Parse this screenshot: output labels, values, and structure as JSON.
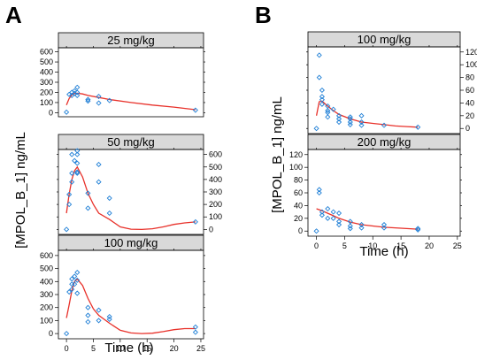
{
  "chart_data": [
    {
      "panel_label": "A",
      "type": "line",
      "xlabel": "Time (h)",
      "ylabel": "[MPOL_B_1] ng/mL",
      "xlim": [
        -1.5,
        25.5
      ],
      "ylim": [
        -40,
        640
      ],
      "xticks": [
        0,
        5,
        10,
        15,
        20,
        25
      ],
      "yticks": [
        0,
        100,
        200,
        300,
        400,
        500,
        600
      ],
      "panels": [
        {
          "strip": "25 mg/kg",
          "yaxis_side": "left",
          "observed": [
            [
              0,
              5
            ],
            [
              0.5,
              180
            ],
            [
              1,
              200
            ],
            [
              1,
              170
            ],
            [
              1.5,
              215
            ],
            [
              1.5,
              190
            ],
            [
              2,
              250
            ],
            [
              2,
              200
            ],
            [
              2,
              170
            ],
            [
              4,
              130
            ],
            [
              4,
              115
            ],
            [
              6,
              160
            ],
            [
              6,
              95
            ],
            [
              8,
              120
            ],
            [
              24,
              25
            ]
          ],
          "predicted": [
            [
              0,
              75
            ],
            [
              0.5,
              140
            ],
            [
              1,
              175
            ],
            [
              1.5,
              190
            ],
            [
              2,
              192
            ],
            [
              3,
              185
            ],
            [
              4,
              170
            ],
            [
              6,
              150
            ],
            [
              8,
              130
            ],
            [
              12,
              100
            ],
            [
              16,
              75
            ],
            [
              20,
              55
            ],
            [
              24,
              30
            ]
          ]
        },
        {
          "strip": "50 mg/kg",
          "yaxis_side": "right",
          "observed": [
            [
              0,
              0
            ],
            [
              0.5,
              200
            ],
            [
              0.5,
              280
            ],
            [
              1,
              450
            ],
            [
              1,
              380
            ],
            [
              1,
              600
            ],
            [
              1.5,
              550
            ],
            [
              2,
              600
            ],
            [
              2,
              530
            ],
            [
              2,
              630
            ],
            [
              2,
              450
            ],
            [
              2,
              460
            ],
            [
              4,
              290
            ],
            [
              4,
              170
            ],
            [
              6,
              520
            ],
            [
              6,
              380
            ],
            [
              8,
              250
            ],
            [
              8,
              130
            ],
            [
              24,
              60
            ]
          ],
          "predicted": [
            [
              0,
              130
            ],
            [
              0.5,
              280
            ],
            [
              1,
              400
            ],
            [
              1.5,
              470
            ],
            [
              2,
              500
            ],
            [
              3,
              420
            ],
            [
              4,
              290
            ],
            [
              5,
              200
            ],
            [
              6,
              130
            ],
            [
              8,
              80
            ],
            [
              10,
              20
            ],
            [
              12,
              2
            ],
            [
              14,
              0
            ],
            [
              16,
              5
            ],
            [
              18,
              20
            ],
            [
              20,
              40
            ],
            [
              22,
              52
            ],
            [
              24,
              60
            ]
          ]
        },
        {
          "strip": "100 mg/kg",
          "yaxis_side": "left",
          "observed": [
            [
              0,
              0
            ],
            [
              0.5,
              320
            ],
            [
              1,
              340
            ],
            [
              1,
              380
            ],
            [
              1,
              420
            ],
            [
              1.5,
              440
            ],
            [
              1.5,
              380
            ],
            [
              2,
              470
            ],
            [
              2,
              410
            ],
            [
              2,
              310
            ],
            [
              4,
              200
            ],
            [
              4,
              90
            ],
            [
              4,
              140
            ],
            [
              6,
              180
            ],
            [
              6,
              100
            ],
            [
              8,
              110
            ],
            [
              8,
              130
            ],
            [
              24,
              50
            ],
            [
              24,
              10
            ]
          ],
          "predicted": [
            [
              0,
              120
            ],
            [
              0.5,
              220
            ],
            [
              1,
              330
            ],
            [
              1.5,
              400
            ],
            [
              2,
              420
            ],
            [
              3,
              370
            ],
            [
              4,
              270
            ],
            [
              5,
              190
            ],
            [
              6,
              140
            ],
            [
              8,
              80
            ],
            [
              10,
              25
            ],
            [
              12,
              5
            ],
            [
              14,
              0
            ],
            [
              16,
              3
            ],
            [
              18,
              15
            ],
            [
              20,
              30
            ],
            [
              22,
              38
            ],
            [
              24,
              38
            ]
          ]
        }
      ]
    },
    {
      "panel_label": "B",
      "type": "line",
      "xlabel": "Time (h)",
      "ylabel": "[MPOL_B_1] ng/mL",
      "xlim": [
        -1.5,
        25.5
      ],
      "ylim": [
        -8,
        128
      ],
      "xticks": [
        0,
        5,
        10,
        15,
        20,
        25
      ],
      "yticks": [
        0,
        20,
        40,
        60,
        80,
        100,
        120
      ],
      "panels": [
        {
          "strip": "100 mg/kg",
          "yaxis_side": "right",
          "observed": [
            [
              0,
              0
            ],
            [
              0.5,
              115
            ],
            [
              0.5,
              80
            ],
            [
              1,
              60
            ],
            [
              1,
              50
            ],
            [
              1,
              38
            ],
            [
              1,
              45
            ],
            [
              2,
              25
            ],
            [
              2,
              35
            ],
            [
              2,
              18
            ],
            [
              2,
              28
            ],
            [
              3,
              30
            ],
            [
              4,
              20
            ],
            [
              4,
              10
            ],
            [
              4,
              15
            ],
            [
              6,
              18
            ],
            [
              6,
              15
            ],
            [
              6,
              10
            ],
            [
              6,
              6
            ],
            [
              8,
              20
            ],
            [
              8,
              10
            ],
            [
              8,
              5
            ],
            [
              12,
              5
            ],
            [
              18,
              2
            ]
          ],
          "predicted": [
            [
              0,
              20
            ],
            [
              0.5,
              42
            ],
            [
              1,
              43
            ],
            [
              2,
              35
            ],
            [
              3,
              28
            ],
            [
              4,
              22
            ],
            [
              6,
              15
            ],
            [
              8,
              10
            ],
            [
              10,
              8
            ],
            [
              12,
              6
            ],
            [
              14,
              4
            ],
            [
              16,
              3
            ],
            [
              18,
              2
            ]
          ]
        },
        {
          "strip": "200 mg/kg",
          "yaxis_side": "left",
          "observed": [
            [
              0,
              0
            ],
            [
              0.5,
              65
            ],
            [
              0.5,
              60
            ],
            [
              1,
              30
            ],
            [
              1,
              25
            ],
            [
              2,
              35
            ],
            [
              2,
              20
            ],
            [
              3,
              30
            ],
            [
              3,
              20
            ],
            [
              4,
              28
            ],
            [
              4,
              15
            ],
            [
              4,
              10
            ],
            [
              6,
              15
            ],
            [
              6,
              8
            ],
            [
              6,
              4
            ],
            [
              8,
              10
            ],
            [
              8,
              5
            ],
            [
              12,
              10
            ],
            [
              12,
              5
            ],
            [
              18,
              2
            ],
            [
              18,
              4
            ]
          ],
          "predicted": [
            [
              0,
              35
            ],
            [
              1,
              32
            ],
            [
              2,
              28
            ],
            [
              3,
              24
            ],
            [
              4,
              20
            ],
            [
              6,
              14
            ],
            [
              8,
              10
            ],
            [
              10,
              8
            ],
            [
              12,
              6
            ],
            [
              14,
              5
            ],
            [
              16,
              4
            ],
            [
              18,
              3
            ]
          ]
        }
      ]
    }
  ]
}
